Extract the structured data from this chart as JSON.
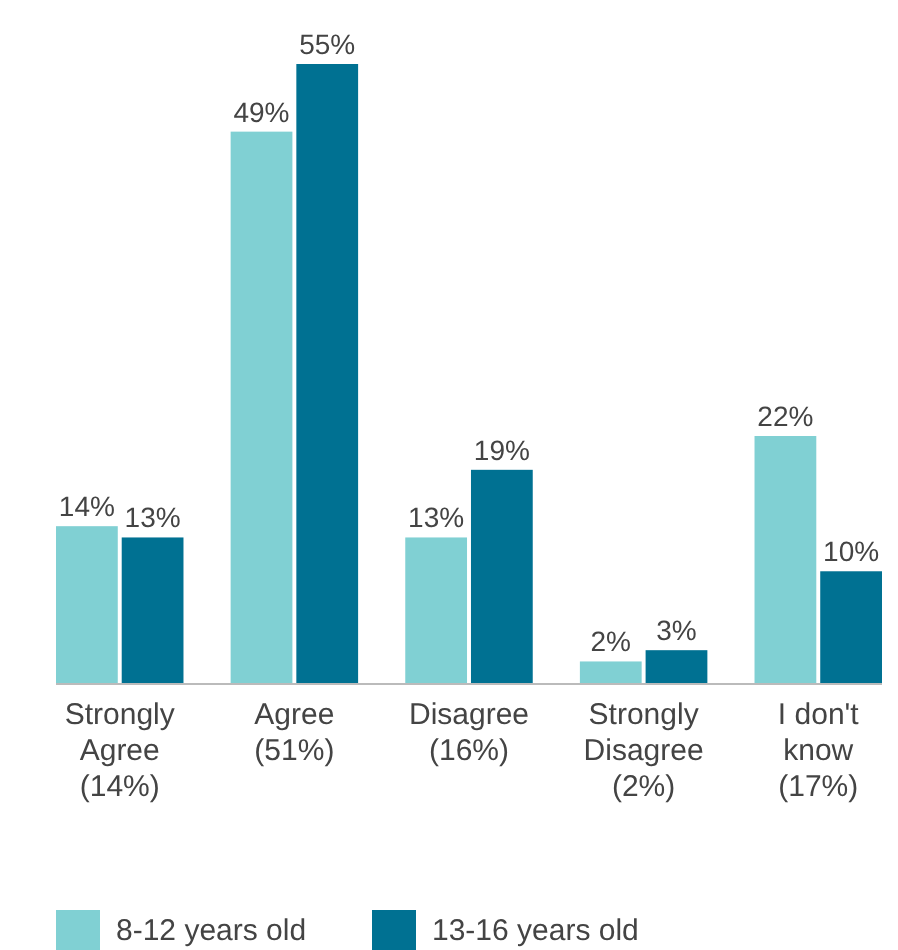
{
  "chart_data": {
    "type": "bar",
    "categories": [
      "Strongly\nAgree\n(14%)",
      "Agree\n(51%)",
      "Disagree\n(16%)",
      "Strongly\nDisagree\n(2%)",
      "I don't\nknow\n(17%)"
    ],
    "series": [
      {
        "name": "8-12 years old",
        "color": "#80d0d3",
        "values": [
          14,
          49,
          13,
          2,
          22
        ],
        "value_labels": [
          "14%",
          "49%",
          "13%",
          "2%",
          "22%"
        ]
      },
      {
        "name": "13-16 years old",
        "color": "#007192",
        "values": [
          13,
          55,
          19,
          3,
          10
        ],
        "value_labels": [
          "13%",
          "55%",
          "19%",
          "3%",
          "10%"
        ]
      }
    ],
    "legend": "bottom"
  }
}
